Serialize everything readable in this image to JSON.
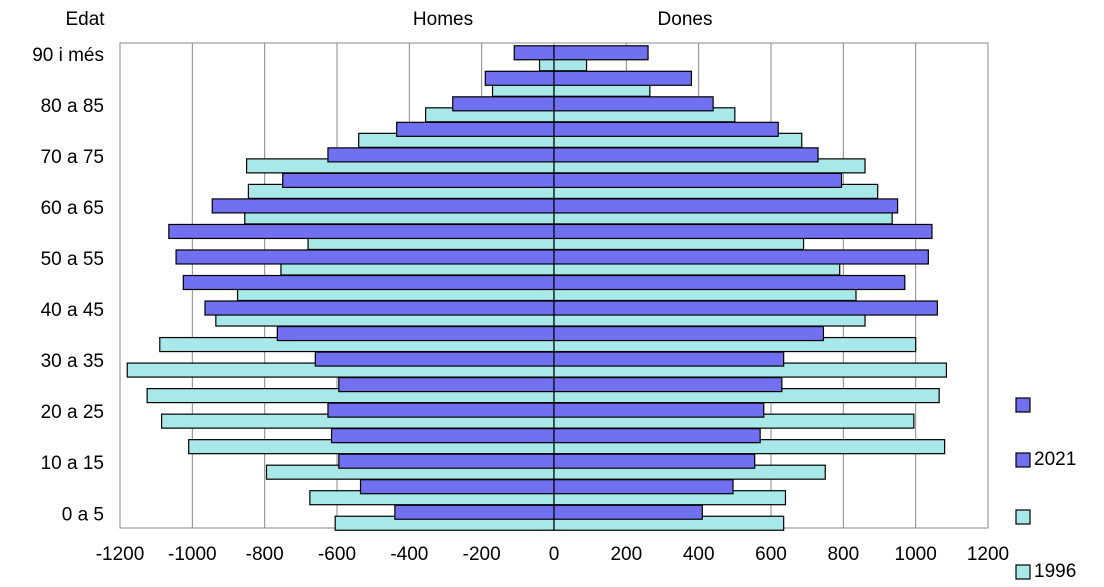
{
  "chart_data": {
    "type": "pyramid",
    "ylabel": "Edat",
    "left_label": "Homes",
    "right_label": "Dones",
    "categories": [
      "0 a 5",
      null,
      "10 a 15",
      null,
      "20 a 25",
      null,
      "30 a 35",
      null,
      "40 a 45",
      null,
      "50 a 55",
      null,
      "60 a 65",
      null,
      "70 a 75",
      null,
      "80 a 85",
      null,
      "90 i més"
    ],
    "series": [
      {
        "name": null,
        "color": "#7070f0",
        "values": [
          -440,
          -535,
          -595,
          -615,
          -625,
          -595,
          -660,
          -765,
          -965,
          -1025,
          -1045,
          -1065,
          -945,
          -750,
          -625,
          -435,
          -280,
          -190,
          -110
        ]
      },
      {
        "name": "2021",
        "color": "#7070f0",
        "values": [
          410,
          495,
          555,
          570,
          580,
          630,
          635,
          745,
          1060,
          970,
          1035,
          1045,
          950,
          795,
          730,
          620,
          440,
          380,
          260
        ]
      },
      {
        "name": null,
        "color": "#a8e8e8",
        "values": [
          -605,
          -675,
          -795,
          -1010,
          -1085,
          -1125,
          -1180,
          -1090,
          -935,
          -875,
          -755,
          -680,
          -855,
          -845,
          -850,
          -540,
          -355,
          -170,
          -40
        ]
      },
      {
        "name": "1996",
        "color": "#a8e8e8",
        "values": [
          635,
          640,
          750,
          1080,
          995,
          1065,
          1085,
          1000,
          860,
          835,
          790,
          690,
          935,
          895,
          860,
          685,
          500,
          265,
          90
        ]
      }
    ],
    "xlim": [
      -1200,
      1200
    ],
    "xticks": [
      -1200,
      -1000,
      -800,
      -600,
      -400,
      -200,
      0,
      200,
      400,
      600,
      800,
      1000,
      1200
    ],
    "grid": true
  }
}
